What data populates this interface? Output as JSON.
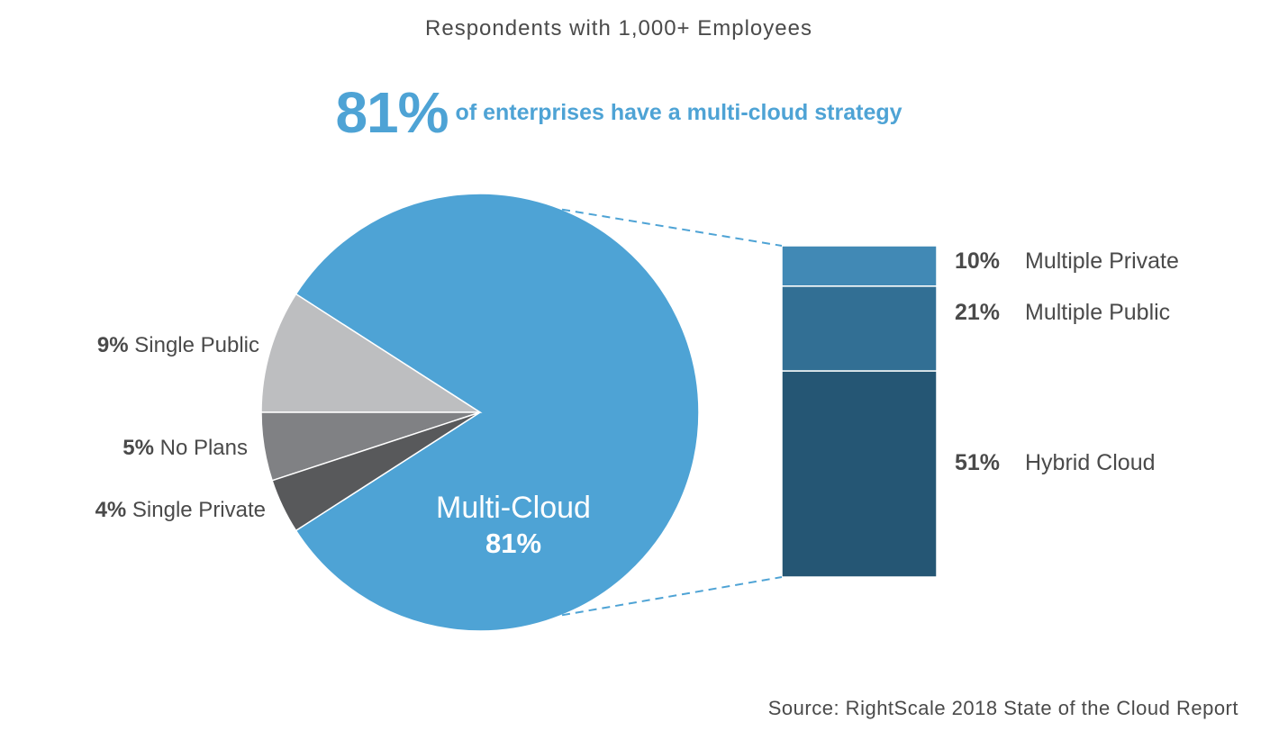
{
  "subtitle": "Respondents with 1,000+ Employees",
  "headline": {
    "big": "81%",
    "rest": "of enterprises have a multi-cloud strategy"
  },
  "source": "Source: RightScale 2018 State of the Cloud Report",
  "colors": {
    "accent": "#4ea3d5",
    "single_public": "#bdbec0",
    "no_plans": "#808184",
    "single_private": "#58595b",
    "multiple_private": "#4189b5",
    "multiple_public": "#326f94",
    "hybrid_cloud": "#255674"
  },
  "chart_data": [
    {
      "type": "pie",
      "slices": [
        {
          "name": "Multi-Cloud",
          "value": 81,
          "pct": "81%",
          "color": "#4ea3d5"
        },
        {
          "name": "Single Public",
          "value": 9,
          "pct": "9%",
          "color": "#bdbec0"
        },
        {
          "name": "No Plans",
          "value": 5,
          "pct": "5%",
          "color": "#808184"
        },
        {
          "name": "Single Private",
          "value": 4,
          "pct": "4%",
          "color": "#58595b"
        }
      ]
    },
    {
      "type": "bar",
      "stacked": true,
      "segments": [
        {
          "name": "Multiple Private",
          "value": 10,
          "pct": "10%",
          "color": "#4189b5"
        },
        {
          "name": "Multiple Public",
          "value": 21,
          "pct": "21%",
          "color": "#326f94"
        },
        {
          "name": "Hybrid Cloud",
          "value": 51,
          "pct": "51%",
          "color": "#255674"
        }
      ]
    }
  ]
}
